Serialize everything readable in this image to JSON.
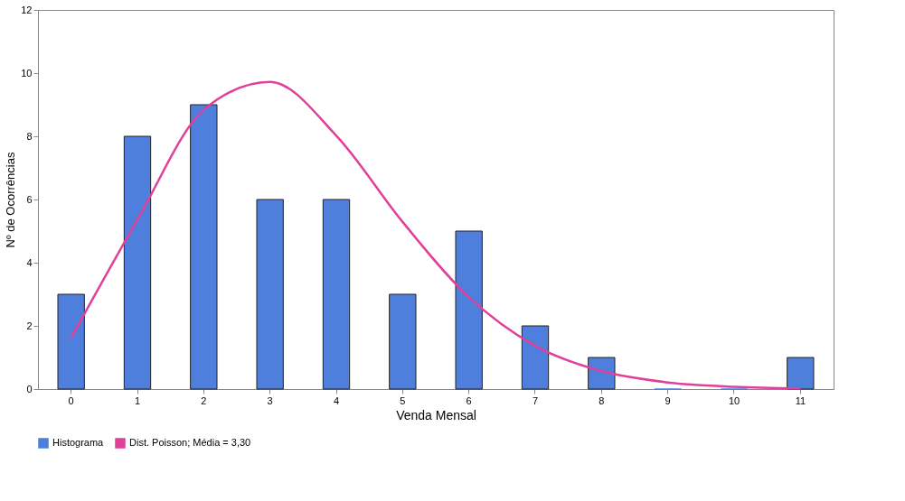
{
  "chart_data": {
    "type": "bar",
    "xlabel": "Venda Mensal",
    "ylabel": "Nº de Ocorrências",
    "categories": [
      "0",
      "1",
      "2",
      "3",
      "4",
      "5",
      "6",
      "7",
      "8",
      "9",
      "10",
      "11"
    ],
    "series": [
      {
        "name": "Histograma",
        "color": "#4f7fdc",
        "values": [
          3,
          8,
          9,
          6,
          6,
          3,
          5,
          2,
          1,
          0,
          0,
          1
        ]
      },
      {
        "name": "Dist. Poisson; Média = 3,30",
        "type": "line",
        "color": "#e0409a",
        "values": [
          1.62,
          5.36,
          8.84,
          9.72,
          8.02,
          5.29,
          2.91,
          1.37,
          0.57,
          0.21,
          0.07,
          0.02
        ]
      }
    ],
    "ylim": [
      0,
      12
    ],
    "yticks": [
      0,
      2,
      4,
      6,
      8,
      10,
      12
    ],
    "grid": false,
    "legend": "bottom",
    "marker": "none"
  }
}
